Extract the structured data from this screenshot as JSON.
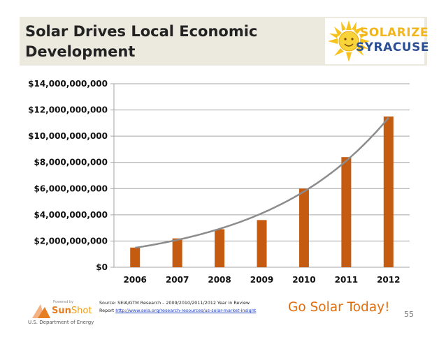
{
  "slide": {
    "title_line1": "Solar Drives Local Economic",
    "title_line2": "Development",
    "page_number": "55",
    "tagline": "Go Solar Today!"
  },
  "logo": {
    "line1": "SOLARIZE",
    "line2": "SYRACUSE"
  },
  "footer": {
    "source_line1": "Source: SEIA/GTM Research – 2009/2010/2011/2012 Year in Review",
    "source_prefix": "Report ",
    "source_url": "http://www.seia.org/research-resources/us-solar-market-insight",
    "sunshot_powered": "Powered by",
    "sunshot_brand_a": "Sun",
    "sunshot_brand_b": "Shot",
    "sunshot_dept": "U.S. Department of Energy"
  },
  "colors": {
    "bar": "#c55a11",
    "trendline": "#8c8c8c",
    "header_bg": "#ece9de",
    "tagline": "#e36c0a"
  },
  "chart_data": {
    "type": "bar",
    "categories": [
      "2006",
      "2007",
      "2008",
      "2009",
      "2010",
      "2011",
      "2012"
    ],
    "values": [
      1500000000,
      2200000000,
      2900000000,
      3600000000,
      6000000000,
      8400000000,
      11500000000
    ],
    "ylim": [
      0,
      14000000000
    ],
    "y_ticks": [
      0,
      2000000000,
      4000000000,
      6000000000,
      8000000000,
      10000000000,
      12000000000,
      14000000000
    ],
    "y_tick_labels": [
      "$0",
      "$2,000,000,000",
      "$4,000,000,000",
      "$6,000,000,000",
      "$8,000,000,000",
      "$10,000,000,000",
      "$12,000,000,000",
      "$14,000,000,000"
    ],
    "title": "",
    "xlabel": "",
    "ylabel": "",
    "grid": true,
    "trendline": "exponential"
  }
}
